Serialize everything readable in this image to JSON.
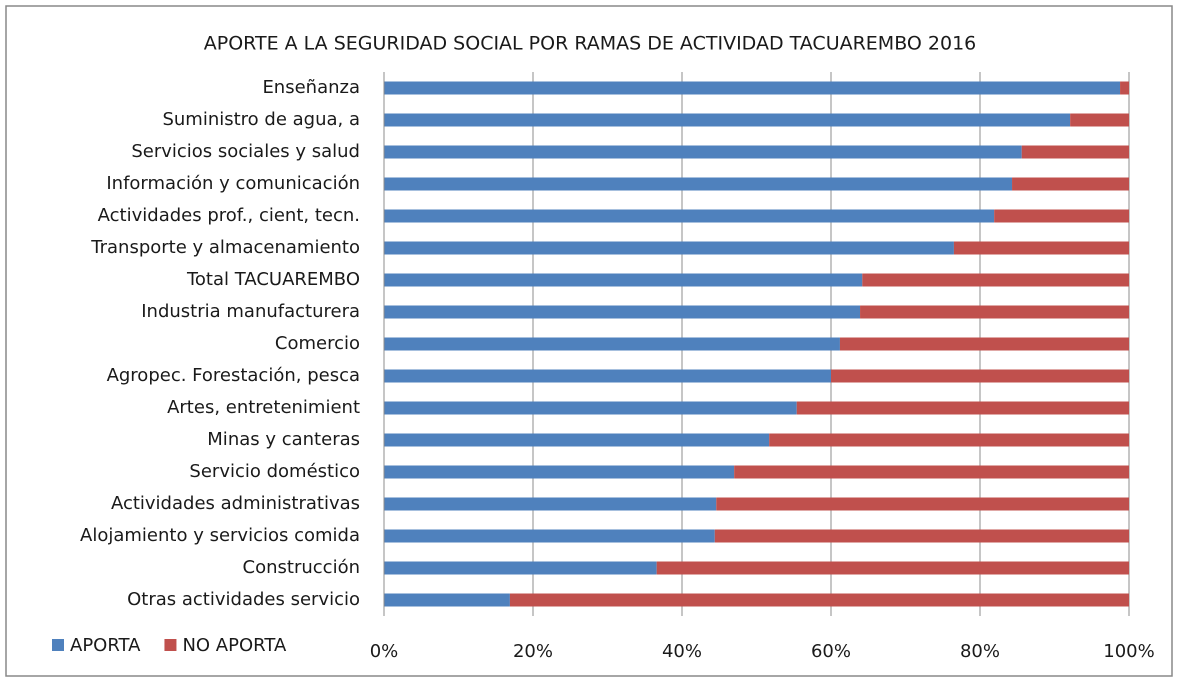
{
  "chart_data": {
    "type": "stacked_barh",
    "title": "APORTE A LA SEGURIDAD SOCIAL POR RAMAS DE ACTIVIDAD TACUAREMBO 2016",
    "categories": [
      "Enseñanza",
      "Suministro de agua, a",
      "Servicios sociales y salud",
      "Información y comunicación",
      "Actividades prof., cient, tecn.",
      "Transporte y almacenamiento",
      "Total TACUAREMBO",
      "Industria manufacturera",
      "Comercio",
      "Agropec. Forestación, pesca",
      "Artes, entretenimient",
      "Minas y canteras",
      "Servicio doméstico",
      "Actividades administrativas",
      "Alojamiento y servicios comida",
      "Construcción",
      "Otras actividades servicio"
    ],
    "series": [
      {
        "name": "APORTA",
        "color": "#4f81bd",
        "values": [
          98.8,
          92.1,
          85.6,
          84.3,
          81.9,
          76.5,
          64.2,
          63.9,
          61.2,
          60.0,
          55.4,
          51.7,
          47.0,
          44.6,
          44.4,
          36.6,
          16.9
        ]
      },
      {
        "name": "NO APORTA",
        "color": "#c0504d",
        "values": [
          1.2,
          7.9,
          14.4,
          15.7,
          18.1,
          23.5,
          35.8,
          36.1,
          38.8,
          40.0,
          44.6,
          48.3,
          53.0,
          55.4,
          55.6,
          63.4,
          83.1
        ]
      }
    ],
    "xlim": [
      0,
      100
    ],
    "xticks": [
      {
        "value": 0,
        "label": "0%"
      },
      {
        "value": 20,
        "label": "20%"
      },
      {
        "value": 40,
        "label": "40%"
      },
      {
        "value": 60,
        "label": "60%"
      },
      {
        "value": 80,
        "label": "80%"
      },
      {
        "value": 100,
        "label": "100%"
      }
    ],
    "grid": true,
    "legend": "bottom-left"
  }
}
